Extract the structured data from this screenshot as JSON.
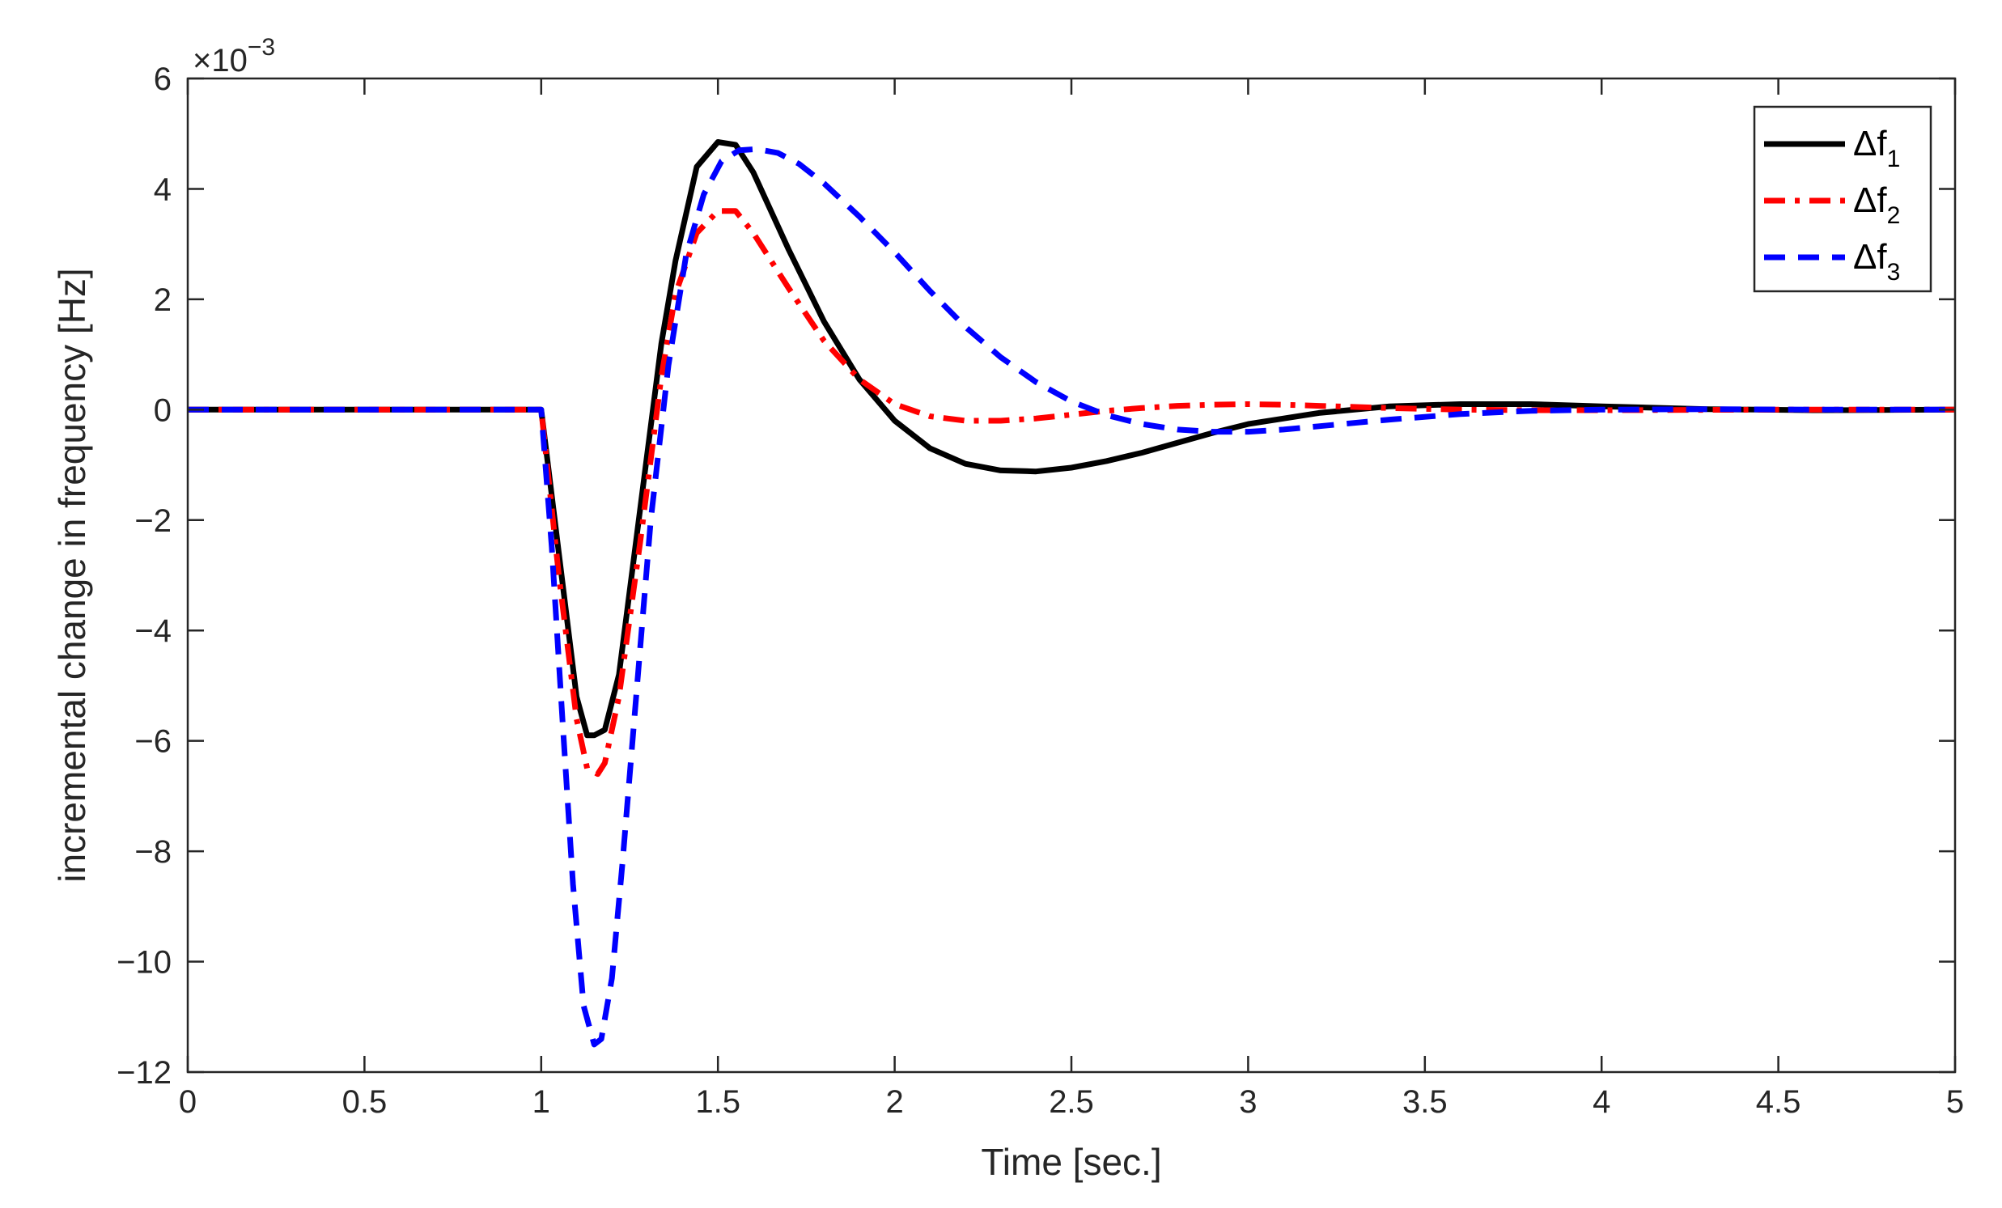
{
  "chart_data": {
    "type": "line",
    "xlabel": "Time [sec.]",
    "ylabel": "incremental change in frequency [Hz]",
    "exponent_label": "×10",
    "exponent_power": "−3",
    "xlim": [
      0,
      5
    ],
    "ylim": [
      -12,
      6
    ],
    "xticks": [
      0,
      0.5,
      1,
      1.5,
      2,
      2.5,
      3,
      3.5,
      4,
      4.5,
      5
    ],
    "xtick_labels": [
      "0",
      "0.5",
      "1",
      "1.5",
      "2",
      "2.5",
      "3",
      "3.5",
      "4",
      "4.5",
      "5"
    ],
    "yticks": [
      6,
      4,
      2,
      0,
      -2,
      -4,
      -6,
      -8,
      -10,
      -12
    ],
    "ytick_labels": [
      "6",
      "4",
      "2",
      "0",
      "−2",
      "−4",
      "−6",
      "−8",
      "−10",
      "−12"
    ],
    "grid": false,
    "legend_position": "top-right",
    "series": [
      {
        "name": "Δf",
        "subscript": "1",
        "color": "#000000",
        "style": "solid",
        "x": [
          0,
          1.0,
          1.05,
          1.1,
          1.13,
          1.15,
          1.18,
          1.22,
          1.28,
          1.34,
          1.38,
          1.44,
          1.5,
          1.55,
          1.6,
          1.7,
          1.8,
          1.9,
          2.0,
          2.1,
          2.2,
          2.3,
          2.4,
          2.5,
          2.6,
          2.7,
          2.8,
          2.9,
          3.0,
          3.2,
          3.4,
          3.6,
          3.8,
          4.0,
          4.3,
          4.6,
          5.0
        ],
        "y": [
          0,
          0,
          -2.6,
          -5.2,
          -5.9,
          -5.9,
          -5.8,
          -4.8,
          -1.8,
          1.2,
          2.7,
          4.4,
          4.85,
          4.8,
          4.3,
          2.9,
          1.6,
          0.55,
          -0.2,
          -0.7,
          -0.98,
          -1.1,
          -1.12,
          -1.05,
          -0.93,
          -0.78,
          -0.6,
          -0.42,
          -0.26,
          -0.06,
          0.06,
          0.1,
          0.1,
          0.06,
          0.01,
          -0.01,
          0
        ]
      },
      {
        "name": "Δf",
        "subscript": "2",
        "color": "#ff0000",
        "style": "dash-dot",
        "x": [
          0,
          1.0,
          1.05,
          1.1,
          1.13,
          1.16,
          1.18,
          1.22,
          1.28,
          1.34,
          1.38,
          1.44,
          1.5,
          1.55,
          1.6,
          1.7,
          1.8,
          1.9,
          2.0,
          2.1,
          2.2,
          2.3,
          2.4,
          2.5,
          2.6,
          2.7,
          2.8,
          2.9,
          3.0,
          3.1,
          3.2,
          3.4,
          3.6,
          3.8,
          4.0,
          4.5,
          5.0
        ],
        "y": [
          0,
          0,
          -3.0,
          -5.6,
          -6.5,
          -6.6,
          -6.4,
          -5.2,
          -2.4,
          0.6,
          2.1,
          3.2,
          3.6,
          3.6,
          3.2,
          2.2,
          1.25,
          0.55,
          0.1,
          -0.12,
          -0.2,
          -0.2,
          -0.16,
          -0.09,
          -0.02,
          0.03,
          0.07,
          0.09,
          0.1,
          0.09,
          0.07,
          0.03,
          0.0,
          -0.01,
          -0.01,
          0,
          0
        ]
      },
      {
        "name": "Δf",
        "subscript": "3",
        "color": "#0000ff",
        "style": "dashed",
        "x": [
          0,
          1.0,
          1.03,
          1.06,
          1.09,
          1.12,
          1.15,
          1.17,
          1.2,
          1.23,
          1.27,
          1.31,
          1.36,
          1.41,
          1.46,
          1.51,
          1.56,
          1.61,
          1.67,
          1.73,
          1.8,
          1.9,
          2.0,
          2.1,
          2.2,
          2.3,
          2.4,
          2.5,
          2.6,
          2.7,
          2.8,
          2.9,
          3.0,
          3.1,
          3.2,
          3.4,
          3.6,
          3.8,
          4.0,
          4.3,
          4.6,
          5.0
        ],
        "y": [
          0,
          0,
          -2.5,
          -5.6,
          -8.6,
          -10.8,
          -11.5,
          -11.4,
          -10.3,
          -8.2,
          -5.1,
          -2.0,
          0.8,
          2.8,
          3.9,
          4.5,
          4.7,
          4.72,
          4.65,
          4.45,
          4.1,
          3.5,
          2.85,
          2.15,
          1.5,
          0.95,
          0.5,
          0.15,
          -0.1,
          -0.26,
          -0.36,
          -0.4,
          -0.4,
          -0.36,
          -0.3,
          -0.18,
          -0.08,
          -0.02,
          0.0,
          0.01,
          0,
          0
        ]
      }
    ]
  }
}
